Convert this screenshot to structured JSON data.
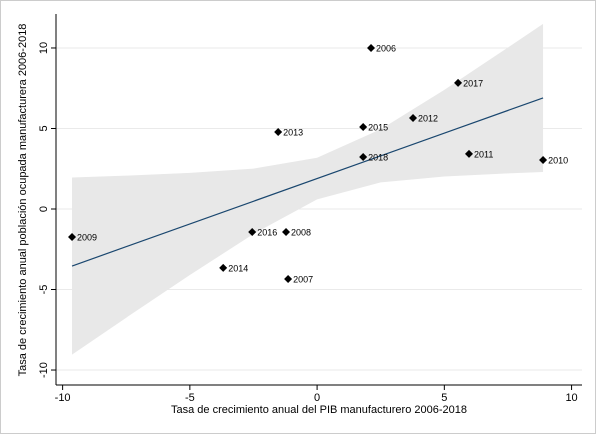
{
  "chart_data": {
    "type": "scatter",
    "x_label": "Tasa de crecimiento anual del PIB manufacturero 2006-2018",
    "y_label": "Tasa de crecimiento anual población ocupada manufacturera 2006-2018",
    "x": [
      -9.63,
      2.12,
      5.54,
      3.77,
      1.81,
      -1.53,
      1.81,
      5.97,
      8.88,
      -2.55,
      -1.22,
      -3.69,
      -1.14
    ],
    "values": [
      -1.74,
      10.0,
      7.83,
      5.65,
      5.09,
      4.78,
      3.23,
      3.42,
      3.04,
      -1.43,
      -1.43,
      -3.66,
      -4.35
    ],
    "labels": [
      "2009",
      "2006",
      "2017",
      "2012",
      "2015",
      "2013",
      "2018",
      "2011",
      "2010",
      "2016",
      "2008",
      "2014",
      "2007"
    ],
    "color": "#000000",
    "fit": {
      "x": [
        -9.63,
        8.88
      ],
      "values": [
        -3.54,
        6.9
      ],
      "color": "#1a476f"
    },
    "band": {
      "x": [
        -9.63,
        -7.5,
        -5,
        -2.5,
        0,
        2.5,
        5,
        7.5,
        8.88
      ],
      "lower": [
        -9.04,
        -6.75,
        -4.1,
        -1.55,
        0.6,
        1.65,
        2.02,
        2.21,
        2.3
      ],
      "upper": [
        1.96,
        2.07,
        2.24,
        2.51,
        3.18,
        4.95,
        7.4,
        10.03,
        11.5
      ],
      "color": "#e8e8e8"
    },
    "xlim": [
      -10.26,
      10.41
    ],
    "ylim": [
      -10.93,
      12.11
    ],
    "xticks": [
      -10,
      -5,
      0,
      5,
      10
    ],
    "yticks": [
      -10,
      -5,
      0,
      5,
      10
    ],
    "grid": true
  }
}
